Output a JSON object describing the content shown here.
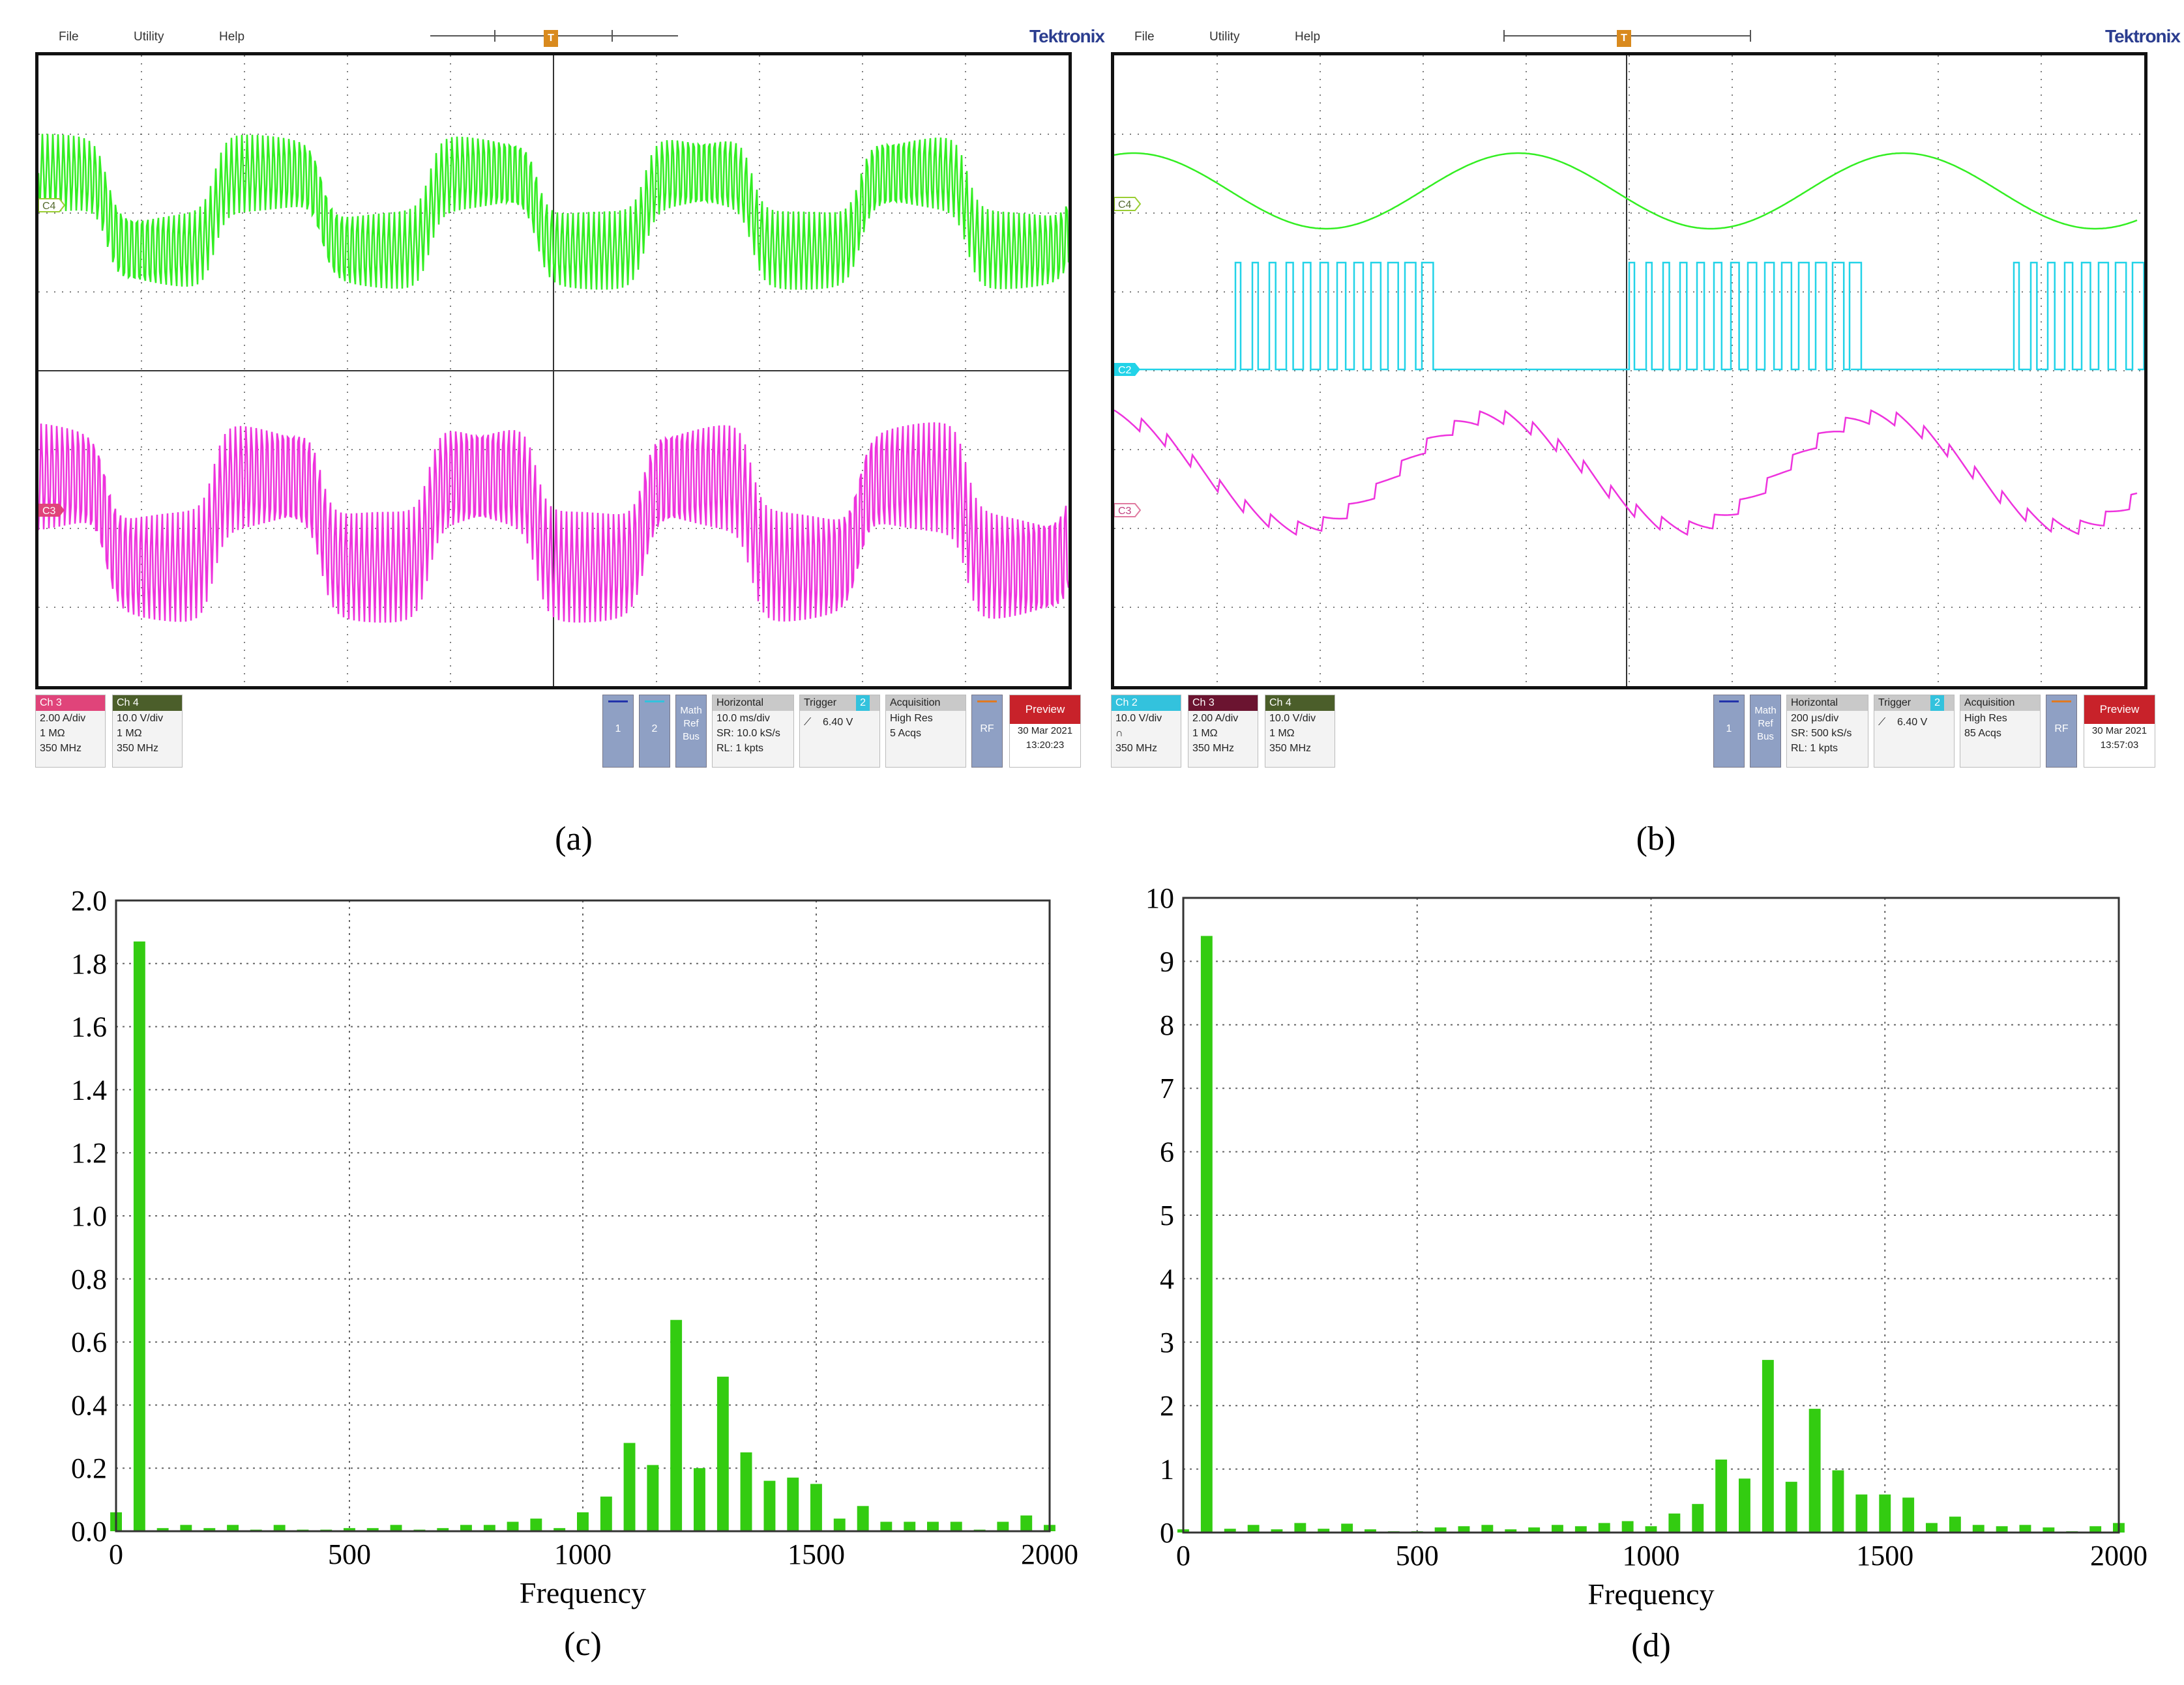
{
  "scope_a": {
    "menu": [
      "File",
      "Utility",
      "Help"
    ],
    "brand": "Tektronix",
    "trigger_marker": "T",
    "channel_labels": {
      "top": "C4",
      "bottom": "C3"
    },
    "channels": [
      {
        "head": "Ch 3",
        "color": "#e0447a",
        "lines": [
          "2.00 A/div",
          "1 MΩ",
          "350 MHz"
        ]
      },
      {
        "head": "Ch 4",
        "color": "#4b5e2a",
        "lines": [
          "10.0 V/div",
          "1 MΩ",
          "350 MHz"
        ]
      }
    ],
    "chips": [
      {
        "label": "1",
        "bar": "#2233aa"
      },
      {
        "label": "2",
        "bar": "#33c2dd"
      },
      {
        "label": "Math Ref Bus",
        "bar": ""
      }
    ],
    "horizontal": {
      "head": "Horizontal",
      "lines": [
        "10.0 ms/div",
        "SR: 10.0 kS/s",
        "RL: 1 kpts"
      ]
    },
    "trigger": {
      "head": "Trigger",
      "channel": "2",
      "level": "6.40 V"
    },
    "acquisition": {
      "head": "Acquisition",
      "lines": [
        "High Res",
        "5 Acqs"
      ]
    },
    "rf": "RF",
    "preview": {
      "head": "Preview",
      "date": "30 Mar 2021",
      "time": "13:20:23"
    },
    "caption": "(a)"
  },
  "scope_b": {
    "menu": [
      "File",
      "Utility",
      "Help"
    ],
    "brand": "Tektronix",
    "trigger_marker": "T",
    "channel_labels": {
      "top": "C4",
      "middle": "C2",
      "bottom": "C3"
    },
    "channels": [
      {
        "head": "Ch 2",
        "color": "#33c2dd",
        "lines": [
          "10.0 V/div",
          "∩",
          "350 MHz"
        ]
      },
      {
        "head": "Ch 3",
        "color": "#6b1430",
        "lines": [
          "2.00 A/div",
          "1 MΩ",
          "350 MHz"
        ]
      },
      {
        "head": "Ch 4",
        "color": "#4b5e2a",
        "lines": [
          "10.0 V/div",
          "1 MΩ",
          "350 MHz"
        ]
      }
    ],
    "chips": [
      {
        "label": "1",
        "bar": "#2233aa"
      },
      {
        "label": "Math Ref Bus",
        "bar": ""
      }
    ],
    "horizontal": {
      "head": "Horizontal",
      "lines": [
        "200 μs/div",
        "SR: 500 kS/s",
        "RL: 1 kpts"
      ]
    },
    "trigger": {
      "head": "Trigger",
      "channel": "2",
      "level": "6.40 V"
    },
    "acquisition": {
      "head": "Acquisition",
      "lines": [
        "High Res",
        "85 Acqs"
      ]
    },
    "rf": "RF",
    "preview": {
      "head": "Preview",
      "date": "30 Mar 2021",
      "time": "13:57:03"
    },
    "caption": "(b)"
  },
  "chart_data": [
    {
      "type": "bar",
      "caption": "(c)",
      "xlabel": "Frequency",
      "ylabel": "",
      "xlim": [
        0,
        2000
      ],
      "ylim": [
        0,
        2.0
      ],
      "xticks": [
        "0",
        "500",
        "1000",
        "1500",
        "2000"
      ],
      "yticks": [
        "0.0",
        "0.2",
        "0.4",
        "0.6",
        "0.8",
        "1.0",
        "1.2",
        "1.4",
        "1.6",
        "1.8",
        "2.0"
      ],
      "grid": true,
      "bar_color": "#33cc11",
      "x": [
        0,
        50,
        100,
        150,
        200,
        250,
        300,
        350,
        400,
        450,
        500,
        550,
        600,
        650,
        700,
        750,
        800,
        850,
        900,
        950,
        1000,
        1050,
        1100,
        1150,
        1200,
        1250,
        1300,
        1350,
        1400,
        1450,
        1500,
        1550,
        1600,
        1650,
        1700,
        1750,
        1800,
        1850,
        1900,
        1950,
        2000
      ],
      "values": [
        0.06,
        1.87,
        0.01,
        0.02,
        0.01,
        0.02,
        0.005,
        0.02,
        0.005,
        0.005,
        0.01,
        0.01,
        0.02,
        0.005,
        0.01,
        0.02,
        0.02,
        0.03,
        0.04,
        0.01,
        0.06,
        0.11,
        0.28,
        0.21,
        0.67,
        0.2,
        0.49,
        0.25,
        0.16,
        0.17,
        0.15,
        0.04,
        0.08,
        0.03,
        0.03,
        0.03,
        0.03,
        0.005,
        0.03,
        0.05,
        0.02
      ]
    },
    {
      "type": "bar",
      "caption": "(d)",
      "xlabel": "Frequency",
      "ylabel": "",
      "xlim": [
        0,
        2000
      ],
      "ylim": [
        0,
        10
      ],
      "xticks": [
        "0",
        "500",
        "1000",
        "1500",
        "2000"
      ],
      "yticks": [
        "0",
        "1",
        "2",
        "3",
        "4",
        "5",
        "6",
        "7",
        "8",
        "9",
        "10"
      ],
      "grid": true,
      "bar_color": "#33cc11",
      "x": [
        0,
        50,
        100,
        150,
        200,
        250,
        300,
        350,
        400,
        450,
        500,
        550,
        600,
        650,
        700,
        750,
        800,
        850,
        900,
        950,
        1000,
        1050,
        1100,
        1150,
        1200,
        1250,
        1300,
        1350,
        1400,
        1450,
        1500,
        1550,
        1600,
        1650,
        1700,
        1750,
        1800,
        1850,
        1900,
        1950,
        2000
      ],
      "values": [
        0.05,
        9.4,
        0.06,
        0.12,
        0.05,
        0.15,
        0.06,
        0.14,
        0.05,
        0.02,
        0.02,
        0.08,
        0.1,
        0.12,
        0.05,
        0.08,
        0.12,
        0.1,
        0.15,
        0.18,
        0.1,
        0.3,
        0.45,
        1.15,
        0.85,
        2.72,
        0.8,
        1.95,
        0.98,
        0.6,
        0.6,
        0.55,
        0.15,
        0.25,
        0.12,
        0.1,
        0.12,
        0.08,
        0.02,
        0.1,
        0.15
      ]
    }
  ]
}
